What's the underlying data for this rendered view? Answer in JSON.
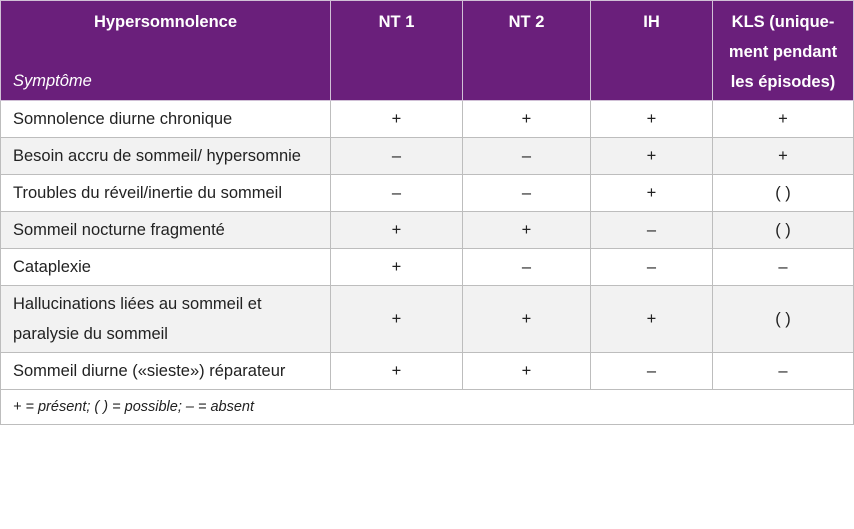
{
  "table": {
    "header": {
      "title": "Hypersomnolence",
      "subtitle": "Symptôme",
      "columns": [
        "NT 1",
        "NT 2",
        "IH",
        "KLS (unique­ment pendant les épisodes)"
      ]
    },
    "rows": [
      [
        "Somnolence diurne chronique",
        "+",
        "+",
        "+",
        "+"
      ],
      [
        "Besoin accru de sommeil/ hypersomnie",
        "–",
        "–",
        "+",
        "+"
      ],
      [
        "Troubles du réveil/inertie du sommeil",
        "–",
        "–",
        "+",
        "( )"
      ],
      [
        "Sommeil nocturne fragmenté",
        "+",
        "+",
        "–",
        "( )"
      ],
      [
        "Cataplexie",
        "+",
        "–",
        "–",
        "–"
      ],
      [
        "Hallucinations liées au sommeil et paralysie du sommeil",
        "+",
        "+",
        "+",
        "( )"
      ],
      [
        "Sommeil diurne («sieste») répara­teur",
        "+",
        "+",
        "–",
        "–"
      ]
    ],
    "footnote": "+ = présent; ( ) = possible; – = absent"
  }
}
